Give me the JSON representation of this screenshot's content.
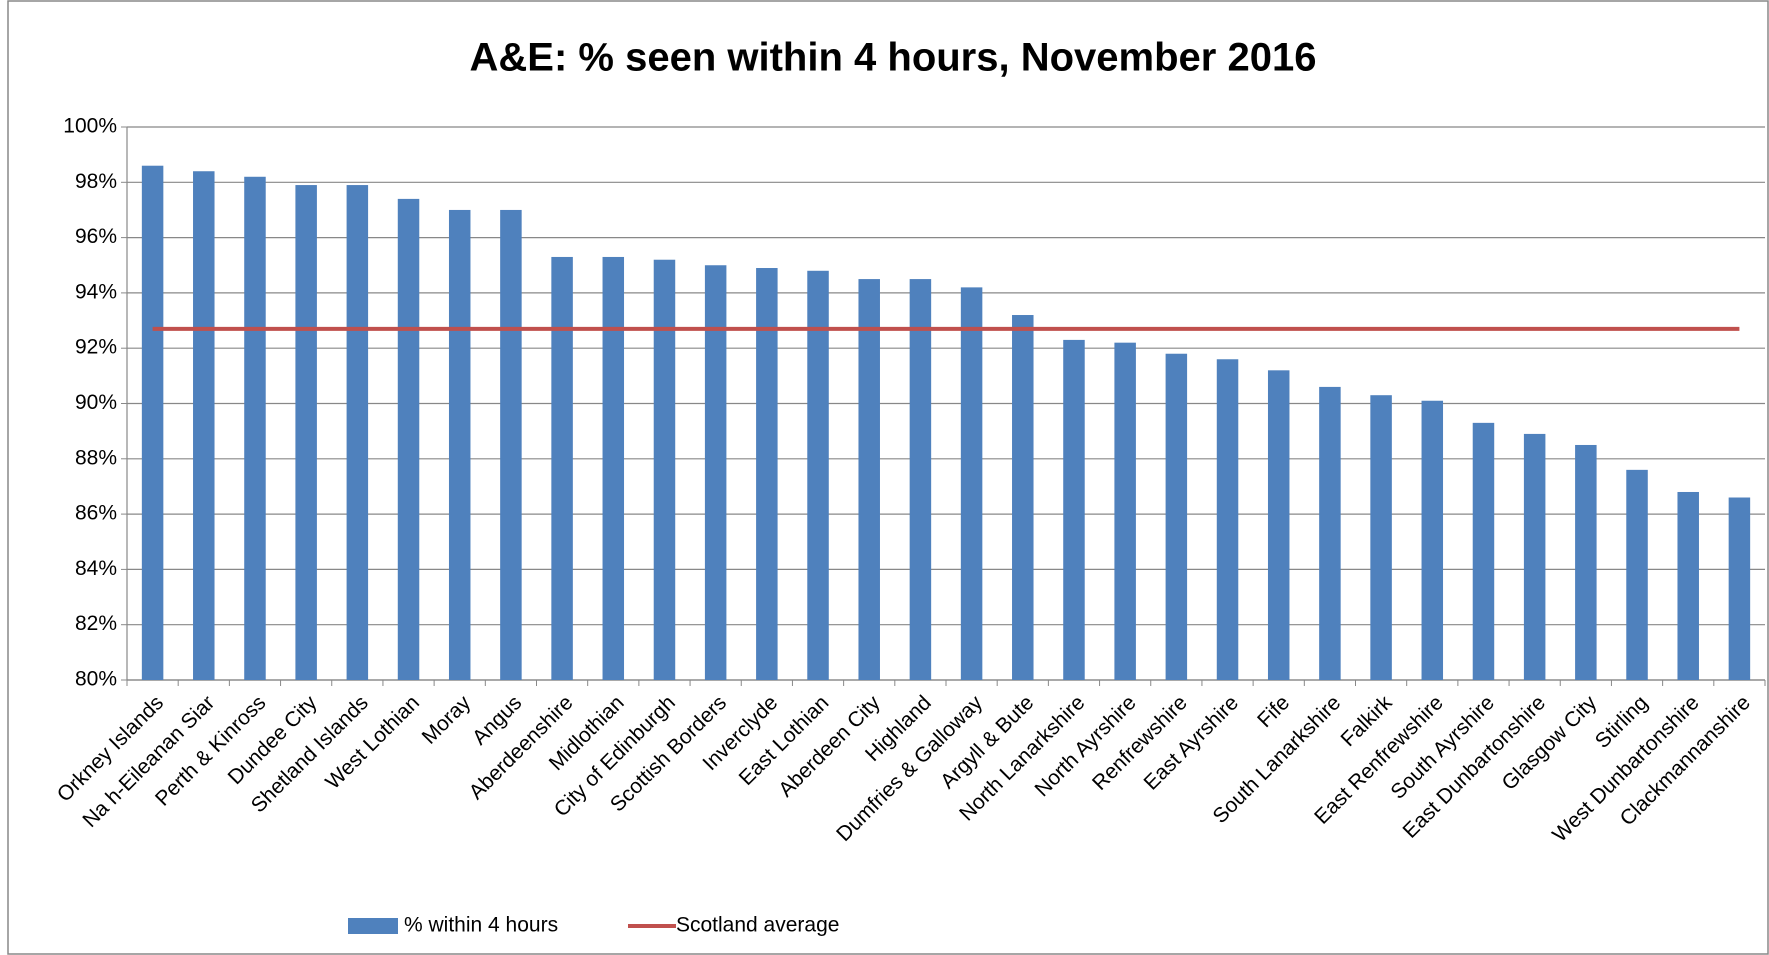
{
  "chart_data": {
    "type": "bar",
    "title": "A&E: % seen within 4 hours, November 2016",
    "categories": [
      "Orkney Islands",
      "Na h-Eileanan Siar",
      "Perth & Kinross",
      "Dundee City",
      "Shetland Islands",
      "West Lothian",
      "Moray",
      "Angus",
      "Aberdeenshire",
      "Midlothian",
      "City of Edinburgh",
      "Scottish Borders",
      "Inverclyde",
      "East Lothian",
      "Aberdeen City",
      "Highland",
      "Dumfries & Galloway",
      "Argyll & Bute",
      "North Lanarkshire",
      "North Ayrshire",
      "Renfrewshire",
      "East Ayrshire",
      "Fife",
      "South Lanarkshire",
      "Falkirk",
      "East Renfrewshire",
      "South Ayrshire",
      "East Dunbartonshire",
      "Glasgow City",
      "Stirling",
      "West Dunbartonshire",
      "Clackmannanshire"
    ],
    "series": [
      {
        "name": "% within 4 hours",
        "type": "bar",
        "color": "#4f81bd",
        "values": [
          98.6,
          98.4,
          98.2,
          97.9,
          97.9,
          97.4,
          97.0,
          97.0,
          95.3,
          95.3,
          95.2,
          95.0,
          94.9,
          94.8,
          94.5,
          94.5,
          94.2,
          93.2,
          92.3,
          92.2,
          91.8,
          91.6,
          91.2,
          90.6,
          90.3,
          90.1,
          89.3,
          88.9,
          88.5,
          87.6,
          86.8,
          86.6
        ]
      },
      {
        "name": "Scotland average",
        "type": "line",
        "color": "#c0504d",
        "values": [
          92.7,
          92.7,
          92.7,
          92.7,
          92.7,
          92.7,
          92.7,
          92.7,
          92.7,
          92.7,
          92.7,
          92.7,
          92.7,
          92.7,
          92.7,
          92.7,
          92.7,
          92.7,
          92.7,
          92.7,
          92.7,
          92.7,
          92.7,
          92.7,
          92.7,
          92.7,
          92.7,
          92.7,
          92.7,
          92.7,
          92.7,
          92.7
        ]
      }
    ],
    "ylim": [
      80,
      100
    ],
    "yticks": [
      {
        "value": 80,
        "label": "80%"
      },
      {
        "value": 82,
        "label": "82%"
      },
      {
        "value": 84,
        "label": "84%"
      },
      {
        "value": 86,
        "label": "86%"
      },
      {
        "value": 88,
        "label": "88%"
      },
      {
        "value": 90,
        "label": "90%"
      },
      {
        "value": 92,
        "label": "92%"
      },
      {
        "value": 94,
        "label": "94%"
      },
      {
        "value": 96,
        "label": "96%"
      },
      {
        "value": 98,
        "label": "98%"
      },
      {
        "value": 100,
        "label": "100%"
      }
    ],
    "grid": true,
    "legend": "bottom"
  }
}
